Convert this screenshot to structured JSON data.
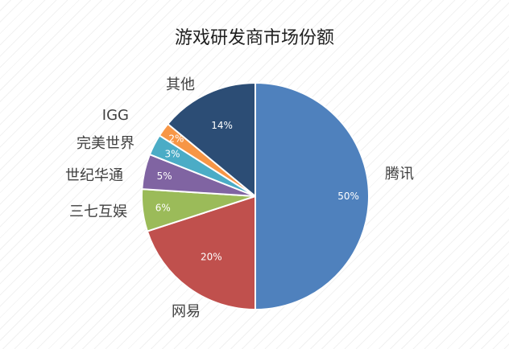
{
  "chart_data": {
    "type": "pie",
    "title": "游戏研发商市场份额",
    "slices": [
      {
        "label": "腾讯",
        "value": 50,
        "pct_text": "50%",
        "color": "#4f81bd"
      },
      {
        "label": "网易",
        "value": 20,
        "pct_text": "20%",
        "color": "#c0504d"
      },
      {
        "label": "三七互娱",
        "value": 6,
        "pct_text": "6%",
        "color": "#9bbb59"
      },
      {
        "label": "世纪华通",
        "value": 5,
        "pct_text": "5%",
        "color": "#8064a2"
      },
      {
        "label": "完美世界",
        "value": 3,
        "pct_text": "3%",
        "color": "#4bacc6"
      },
      {
        "label": "IGG",
        "value": 2,
        "pct_text": "2%",
        "color": "#f79646"
      },
      {
        "label": "其他",
        "value": 14,
        "pct_text": "14%",
        "color": "#2c4d75"
      }
    ],
    "legend": "none",
    "grid": false
  }
}
